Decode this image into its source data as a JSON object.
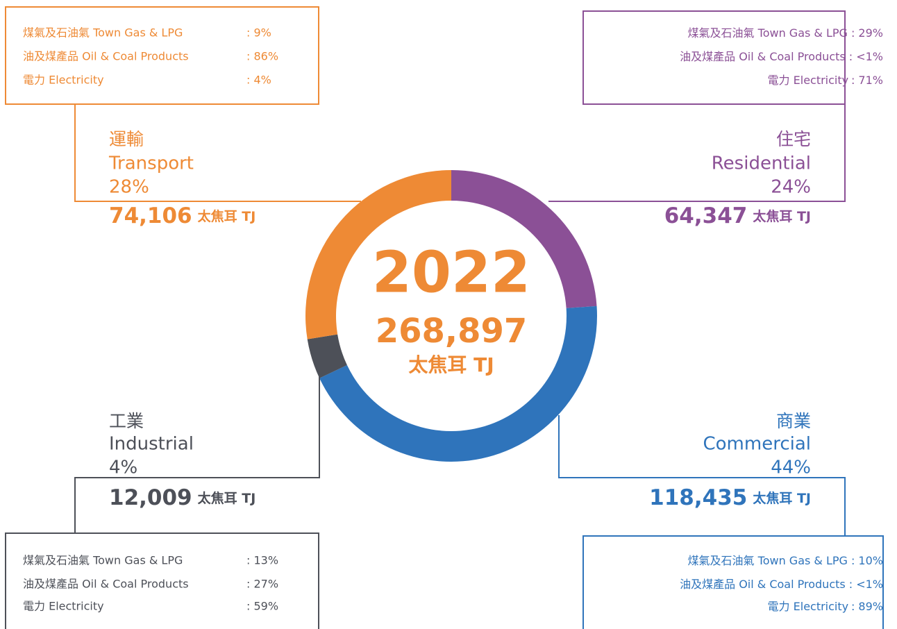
{
  "chart_data": {
    "type": "pie",
    "title": "2022",
    "total_label": "268,897",
    "unit": "太焦耳 TJ",
    "categories": [
      "Residential",
      "Commercial",
      "Industrial",
      "Transport"
    ],
    "category_labels_zh": [
      "住宅",
      "商業",
      "工業",
      "運輸"
    ],
    "values": [
      64347,
      118435,
      12009,
      74106
    ],
    "value_labels": [
      "64,347",
      "118,435",
      "12,009",
      "74,106"
    ],
    "percentages": [
      24,
      44,
      4,
      28
    ],
    "percentage_labels": [
      "24%",
      "44%",
      "4%",
      "28%"
    ],
    "colors": [
      "#8b5096",
      "#2f74bb",
      "#4d5058",
      "#ee8a35"
    ],
    "breakdowns": [
      [
        {
          "label": "煤氣及石油氣  Town Gas & LPG",
          "value": ": 29%"
        },
        {
          "label": "油及煤產品 Oil & Coal Products",
          "value": ": <1%"
        },
        {
          "label": "電力 Electricity",
          "value": ": 71%"
        }
      ],
      [
        {
          "label": "煤氣及石油氣  Town Gas & LPG",
          "value": ": 10%"
        },
        {
          "label": "油及煤產品 Oil & Coal Products",
          "value": ": <1%"
        },
        {
          "label": "電力 Electricity",
          "value": ": 89%"
        }
      ],
      [
        {
          "label": "煤氣及石油氣 Town Gas & LPG",
          "value": ": 13%"
        },
        {
          "label": "油及煤產品 Oil & Coal Products",
          "value": ": 27%"
        },
        {
          "label": "電力 Electricity",
          "value": ": 59%"
        }
      ],
      [
        {
          "label": "煤氣及石油氣 Town Gas & LPG",
          "value": ":  9%"
        },
        {
          "label": "油及煤產品 Oil & Coal Products",
          "value": ": 86%"
        },
        {
          "label": "電力 Electricity",
          "value": ":  4%"
        }
      ]
    ]
  }
}
